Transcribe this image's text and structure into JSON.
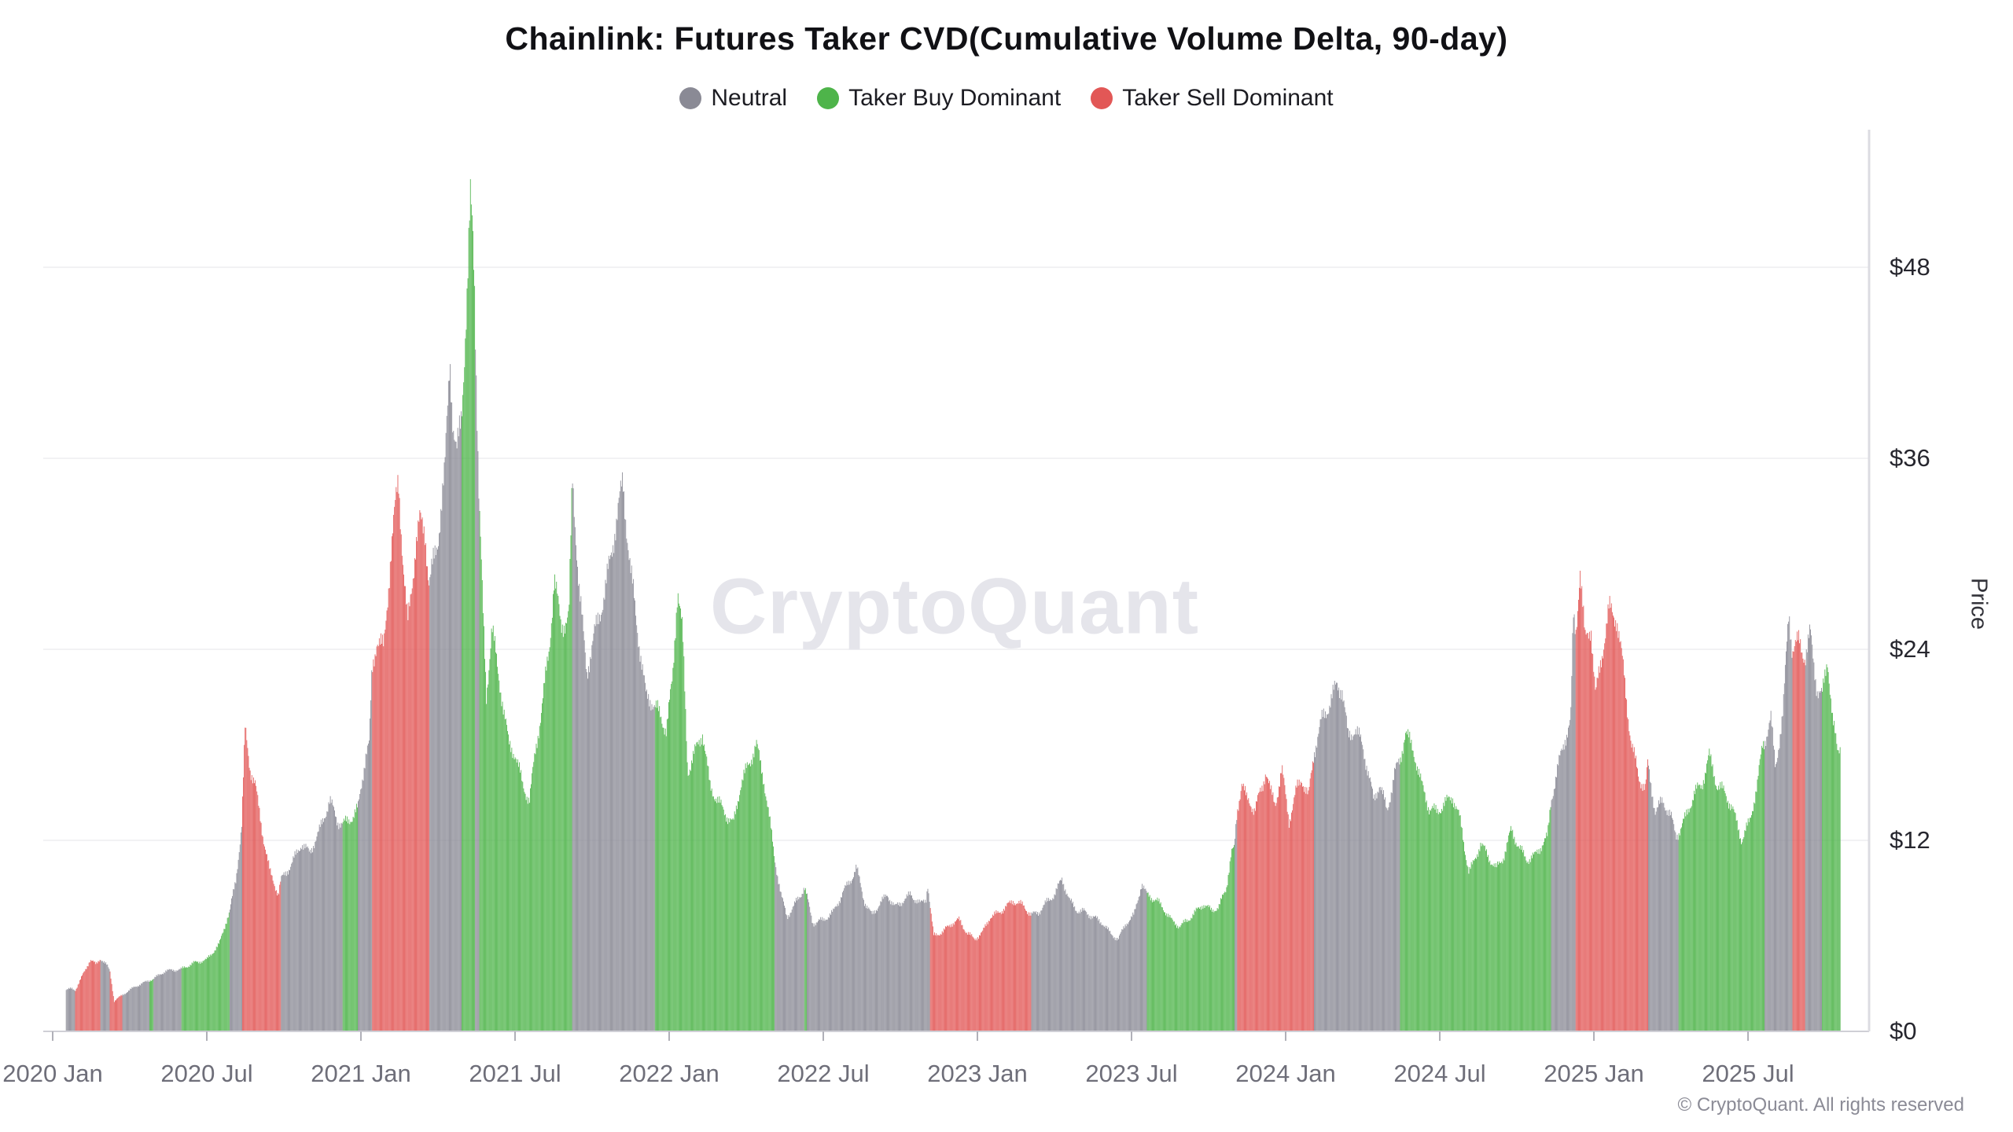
{
  "header": {
    "title": "Chainlink: Futures Taker CVD(Cumulative Volume Delta, 90-day)"
  },
  "legend": {
    "items": [
      {
        "label": "Neutral",
        "key": "N",
        "color": "#8a8a95"
      },
      {
        "label": "Taker Buy Dominant",
        "key": "B",
        "color": "#4eb44a"
      },
      {
        "label": "Taker Sell Dominant",
        "key": "S",
        "color": "#e25756"
      }
    ]
  },
  "watermark": {
    "text": "CryptoQuant"
  },
  "footer": {
    "copyright": "© CryptoQuant. All rights reserved"
  },
  "axes": {
    "y_axis_title": "Price",
    "y_tick_labels": [
      "$0",
      "$12",
      "$24",
      "$36",
      "$48"
    ],
    "grid_color": "#ededf1",
    "baseline_color": "#cfcfd6",
    "right_axis_color": "#dcdce2",
    "tick_color": "#b0b0b8"
  },
  "chart_data": {
    "type": "bar",
    "title": "Chainlink: Futures Taker CVD(Cumulative Volume Delta, 90-day)",
    "xlabel": "",
    "ylabel": "Price",
    "y_unit": "USD",
    "ylim": [
      0,
      52.5
    ],
    "y_ticks": [
      0,
      12,
      24,
      36,
      48
    ],
    "grid": "horizontal",
    "legend_position": "top",
    "bar_resolution": "daily",
    "date_range": [
      "2020-01-17",
      "2025-10-19"
    ],
    "x_ticks": [
      {
        "label": "2020 Jan",
        "date": "2020-01-01"
      },
      {
        "label": "2020 Jul",
        "date": "2020-07-01"
      },
      {
        "label": "2021 Jan",
        "date": "2021-01-01"
      },
      {
        "label": "2021 Jul",
        "date": "2021-07-01"
      },
      {
        "label": "2022 Jan",
        "date": "2022-01-01"
      },
      {
        "label": "2022 Jul",
        "date": "2022-07-01"
      },
      {
        "label": "2023 Jan",
        "date": "2023-01-01"
      },
      {
        "label": "2023 Jul",
        "date": "2023-07-01"
      },
      {
        "label": "2024 Jan",
        "date": "2024-01-01"
      },
      {
        "label": "2024 Jul",
        "date": "2024-07-01"
      },
      {
        "label": "2025 Jan",
        "date": "2025-01-01"
      },
      {
        "label": "2025 Jul",
        "date": "2025-07-01"
      }
    ],
    "categories_legend": {
      "N": "Neutral",
      "B": "Taker Buy Dominant",
      "S": "Taker Sell Dominant"
    },
    "colors": {
      "N": "#8a8a95",
      "B": "#4eb44a",
      "S": "#e25756"
    },
    "points": [
      [
        "2020-01-17",
        2.6,
        "N"
      ],
      [
        "2020-01-24",
        2.7,
        "N"
      ],
      [
        "2020-01-28",
        2.6,
        "S"
      ],
      [
        "2020-02-04",
        3.3,
        "S"
      ],
      [
        "2020-02-15",
        4.5,
        "S"
      ],
      [
        "2020-02-22",
        4.2,
        "S"
      ],
      [
        "2020-02-27",
        4.6,
        "N"
      ],
      [
        "2020-03-05",
        4.1,
        "N"
      ],
      [
        "2020-03-08",
        3.8,
        "S"
      ],
      [
        "2020-03-13",
        1.9,
        "S"
      ],
      [
        "2020-03-18",
        2.1,
        "S"
      ],
      [
        "2020-03-23",
        2.3,
        "N"
      ],
      [
        "2020-04-07",
        2.8,
        "N"
      ],
      [
        "2020-04-24",
        3.2,
        "B"
      ],
      [
        "2020-04-29",
        3.3,
        "N"
      ],
      [
        "2020-05-13",
        3.8,
        "N"
      ],
      [
        "2020-06-01",
        3.9,
        "B"
      ],
      [
        "2020-06-16",
        4.3,
        "B"
      ],
      [
        "2020-07-01",
        4.5,
        "B"
      ],
      [
        "2020-07-16",
        5.5,
        "B"
      ],
      [
        "2020-07-25",
        7.1,
        "B"
      ],
      [
        "2020-07-28",
        7.5,
        "N"
      ],
      [
        "2020-08-05",
        9.5,
        "N"
      ],
      [
        "2020-08-09",
        11.5,
        "N"
      ],
      [
        "2020-08-12",
        13.0,
        "S"
      ],
      [
        "2020-08-16",
        19.0,
        "S"
      ],
      [
        "2020-08-22",
        16.5,
        "S"
      ],
      [
        "2020-08-28",
        15.5,
        "S"
      ],
      [
        "2020-09-06",
        12.5,
        "S"
      ],
      [
        "2020-09-15",
        10.0,
        "S"
      ],
      [
        "2020-09-25",
        8.6,
        "S"
      ],
      [
        "2020-09-28",
        9.5,
        "N"
      ],
      [
        "2020-10-10",
        10.5,
        "N"
      ],
      [
        "2020-10-22",
        11.8,
        "N"
      ],
      [
        "2020-11-01",
        11.2,
        "N"
      ],
      [
        "2020-11-12",
        12.5,
        "N"
      ],
      [
        "2020-11-25",
        14.5,
        "N"
      ],
      [
        "2020-12-04",
        13.2,
        "N"
      ],
      [
        "2020-12-10",
        13.0,
        "B"
      ],
      [
        "2020-12-22",
        13.5,
        "B"
      ],
      [
        "2020-12-28",
        14.0,
        "N"
      ],
      [
        "2021-01-07",
        17.5,
        "N"
      ],
      [
        "2021-01-11",
        18.0,
        "N"
      ],
      [
        "2021-01-14",
        22.5,
        "S"
      ],
      [
        "2021-01-20",
        24.7,
        "S"
      ],
      [
        "2021-01-28",
        24.0,
        "S"
      ],
      [
        "2021-02-06",
        30.0,
        "S"
      ],
      [
        "2021-02-15",
        34.8,
        "S"
      ],
      [
        "2021-02-21",
        29.0,
        "S"
      ],
      [
        "2021-02-26",
        25.5,
        "S"
      ],
      [
        "2021-03-05",
        30.5,
        "S"
      ],
      [
        "2021-03-10",
        32.0,
        "S"
      ],
      [
        "2021-03-16",
        31.5,
        "S"
      ],
      [
        "2021-03-21",
        28.0,
        "N"
      ],
      [
        "2021-04-01",
        31.0,
        "N"
      ],
      [
        "2021-04-09",
        35.0,
        "N"
      ],
      [
        "2021-04-15",
        42.6,
        "N"
      ],
      [
        "2021-04-19",
        38.0,
        "N"
      ],
      [
        "2021-04-23",
        36.0,
        "N"
      ],
      [
        "2021-04-29",
        39.0,
        "B"
      ],
      [
        "2021-05-05",
        46.0,
        "B"
      ],
      [
        "2021-05-09",
        52.0,
        "B"
      ],
      [
        "2021-05-12",
        50.0,
        "B"
      ],
      [
        "2021-05-14",
        47.0,
        "N"
      ],
      [
        "2021-05-16",
        41.5,
        "N"
      ],
      [
        "2021-05-19",
        34.0,
        "B"
      ],
      [
        "2021-05-24",
        26.0,
        "B"
      ],
      [
        "2021-05-28",
        21.0,
        "B"
      ],
      [
        "2021-06-04",
        25.5,
        "B"
      ],
      [
        "2021-06-10",
        23.0,
        "B"
      ],
      [
        "2021-06-16",
        21.0,
        "B"
      ],
      [
        "2021-06-24",
        18.0,
        "B"
      ],
      [
        "2021-07-01",
        17.5,
        "B"
      ],
      [
        "2021-07-10",
        15.5,
        "B"
      ],
      [
        "2021-07-18",
        14.5,
        "B"
      ],
      [
        "2021-07-25",
        17.5,
        "B"
      ],
      [
        "2021-08-04",
        21.0,
        "B"
      ],
      [
        "2021-08-11",
        24.0,
        "B"
      ],
      [
        "2021-08-17",
        28.5,
        "B"
      ],
      [
        "2021-08-25",
        25.5,
        "B"
      ],
      [
        "2021-09-04",
        26.0,
        "B"
      ],
      [
        "2021-09-08",
        34.8,
        "N"
      ],
      [
        "2021-09-16",
        28.0,
        "N"
      ],
      [
        "2021-09-25",
        22.5,
        "N"
      ],
      [
        "2021-10-04",
        25.0,
        "N"
      ],
      [
        "2021-10-16",
        27.5,
        "N"
      ],
      [
        "2021-10-28",
        31.5,
        "N"
      ],
      [
        "2021-11-07",
        34.5,
        "N"
      ],
      [
        "2021-11-16",
        29.0,
        "N"
      ],
      [
        "2021-11-25",
        25.0,
        "N"
      ],
      [
        "2021-12-04",
        21.0,
        "N"
      ],
      [
        "2021-12-11",
        20.8,
        "N"
      ],
      [
        "2021-12-14",
        20.5,
        "B"
      ],
      [
        "2021-12-19",
        20.0,
        "B"
      ],
      [
        "2021-12-28",
        19.0,
        "B"
      ],
      [
        "2022-01-05",
        22.0,
        "B"
      ],
      [
        "2022-01-11",
        28.0,
        "B"
      ],
      [
        "2022-01-17",
        25.0,
        "B"
      ],
      [
        "2022-01-23",
        16.3,
        "B"
      ],
      [
        "2022-02-01",
        17.5,
        "B"
      ],
      [
        "2022-02-10",
        18.8,
        "B"
      ],
      [
        "2022-02-19",
        15.4,
        "B"
      ],
      [
        "2022-02-28",
        14.5,
        "B"
      ],
      [
        "2022-03-09",
        13.5,
        "B"
      ],
      [
        "2022-03-16",
        13.0,
        "B"
      ],
      [
        "2022-03-25",
        15.5,
        "B"
      ],
      [
        "2022-04-04",
        16.8,
        "B"
      ],
      [
        "2022-04-13",
        18.0,
        "B"
      ],
      [
        "2022-04-22",
        15.8,
        "B"
      ],
      [
        "2022-05-01",
        12.2,
        "B"
      ],
      [
        "2022-05-04",
        11.0,
        "N"
      ],
      [
        "2022-05-12",
        8.5,
        "N"
      ],
      [
        "2022-05-19",
        7.2,
        "N"
      ],
      [
        "2022-06-05",
        8.6,
        "N"
      ],
      [
        "2022-06-09",
        9.1,
        "B"
      ],
      [
        "2022-06-12",
        8.5,
        "N"
      ],
      [
        "2022-06-19",
        6.8,
        "N"
      ],
      [
        "2022-07-01",
        7.0,
        "N"
      ],
      [
        "2022-07-13",
        7.5,
        "N"
      ],
      [
        "2022-07-25",
        8.8,
        "N"
      ],
      [
        "2022-08-04",
        9.6,
        "N"
      ],
      [
        "2022-08-10",
        10.3,
        "N"
      ],
      [
        "2022-08-19",
        8.2,
        "N"
      ],
      [
        "2022-08-28",
        7.3,
        "N"
      ],
      [
        "2022-09-07",
        8.0,
        "N"
      ],
      [
        "2022-09-16",
        8.6,
        "N"
      ],
      [
        "2022-09-25",
        7.8,
        "N"
      ],
      [
        "2022-10-04",
        8.2,
        "N"
      ],
      [
        "2022-10-13",
        8.6,
        "N"
      ],
      [
        "2022-10-25",
        8.0,
        "N"
      ],
      [
        "2022-11-01",
        8.3,
        "N"
      ],
      [
        "2022-11-03",
        9.3,
        "N"
      ],
      [
        "2022-11-06",
        7.8,
        "S"
      ],
      [
        "2022-11-10",
        6.0,
        "S"
      ],
      [
        "2022-11-22",
        6.3,
        "S"
      ],
      [
        "2022-12-01",
        6.8,
        "S"
      ],
      [
        "2022-12-10",
        7.0,
        "S"
      ],
      [
        "2022-12-19",
        6.2,
        "S"
      ],
      [
        "2022-12-28",
        5.8,
        "S"
      ],
      [
        "2023-01-07",
        6.2,
        "S"
      ],
      [
        "2023-01-16",
        7.2,
        "S"
      ],
      [
        "2023-01-25",
        7.4,
        "S"
      ],
      [
        "2023-02-04",
        7.8,
        "S"
      ],
      [
        "2023-02-13",
        8.2,
        "S"
      ],
      [
        "2023-02-25",
        7.9,
        "S"
      ],
      [
        "2023-03-04",
        7.3,
        "N"
      ],
      [
        "2023-03-13",
        7.5,
        "N"
      ],
      [
        "2023-03-22",
        8.1,
        "N"
      ],
      [
        "2023-04-01",
        8.6,
        "N"
      ],
      [
        "2023-04-10",
        9.6,
        "N"
      ],
      [
        "2023-04-19",
        8.2,
        "N"
      ],
      [
        "2023-04-28",
        7.6,
        "N"
      ],
      [
        "2023-05-07",
        7.5,
        "N"
      ],
      [
        "2023-05-16",
        7.2,
        "N"
      ],
      [
        "2023-05-28",
        6.8,
        "N"
      ],
      [
        "2023-06-07",
        6.1,
        "N"
      ],
      [
        "2023-06-16",
        5.8,
        "N"
      ],
      [
        "2023-06-25",
        6.8,
        "N"
      ],
      [
        "2023-07-04",
        7.3,
        "N"
      ],
      [
        "2023-07-13",
        9.3,
        "N"
      ],
      [
        "2023-07-19",
        8.6,
        "B"
      ],
      [
        "2023-08-01",
        8.2,
        "B"
      ],
      [
        "2023-08-10",
        7.6,
        "B"
      ],
      [
        "2023-08-19",
        6.9,
        "B"
      ],
      [
        "2023-08-28",
        6.6,
        "B"
      ],
      [
        "2023-09-07",
        7.0,
        "B"
      ],
      [
        "2023-09-25",
        8.0,
        "B"
      ],
      [
        "2023-10-04",
        7.6,
        "B"
      ],
      [
        "2023-10-13",
        7.8,
        "B"
      ],
      [
        "2023-10-22",
        9.0,
        "B"
      ],
      [
        "2023-10-28",
        11.3,
        "B"
      ],
      [
        "2023-11-01",
        11.4,
        "N"
      ],
      [
        "2023-11-04",
        13.5,
        "S"
      ],
      [
        "2023-11-10",
        15.8,
        "S"
      ],
      [
        "2023-11-16",
        14.5,
        "S"
      ],
      [
        "2023-11-25",
        14.0,
        "S"
      ],
      [
        "2023-12-04",
        15.3,
        "S"
      ],
      [
        "2023-12-08",
        16.5,
        "S"
      ],
      [
        "2023-12-14",
        15.0,
        "S"
      ],
      [
        "2023-12-19",
        14.2,
        "S"
      ],
      [
        "2023-12-27",
        16.5,
        "S"
      ],
      [
        "2024-01-05",
        13.2,
        "S"
      ],
      [
        "2024-01-14",
        15.2,
        "S"
      ],
      [
        "2024-01-20",
        15.9,
        "S"
      ],
      [
        "2024-01-28",
        14.7,
        "S"
      ],
      [
        "2024-02-04",
        17.5,
        "N"
      ],
      [
        "2024-02-13",
        19.5,
        "N"
      ],
      [
        "2024-02-22",
        20.5,
        "N"
      ],
      [
        "2024-03-01",
        21.8,
        "N"
      ],
      [
        "2024-03-07",
        21.5,
        "N"
      ],
      [
        "2024-03-14",
        18.5,
        "N"
      ],
      [
        "2024-03-22",
        19.0,
        "N"
      ],
      [
        "2024-04-01",
        18.0,
        "N"
      ],
      [
        "2024-04-14",
        14.5,
        "N"
      ],
      [
        "2024-04-21",
        15.6,
        "N"
      ],
      [
        "2024-04-30",
        13.8,
        "N"
      ],
      [
        "2024-05-08",
        16.2,
        "N"
      ],
      [
        "2024-05-15",
        17.0,
        "B"
      ],
      [
        "2024-05-21",
        18.9,
        "B"
      ],
      [
        "2024-06-01",
        17.5,
        "B"
      ],
      [
        "2024-06-10",
        15.5,
        "B"
      ],
      [
        "2024-06-19",
        14.0,
        "B"
      ],
      [
        "2024-06-28",
        13.8,
        "B"
      ],
      [
        "2024-07-07",
        14.3,
        "B"
      ],
      [
        "2024-07-16",
        14.8,
        "B"
      ],
      [
        "2024-07-25",
        13.3,
        "B"
      ],
      [
        "2024-08-05",
        10.0,
        "B"
      ],
      [
        "2024-08-10",
        10.5,
        "B"
      ],
      [
        "2024-08-19",
        11.8,
        "B"
      ],
      [
        "2024-08-28",
        11.0,
        "B"
      ],
      [
        "2024-09-07",
        10.2,
        "B"
      ],
      [
        "2024-09-16",
        11.0,
        "B"
      ],
      [
        "2024-09-25",
        12.7,
        "B"
      ],
      [
        "2024-10-04",
        11.5,
        "B"
      ],
      [
        "2024-10-13",
        10.8,
        "B"
      ],
      [
        "2024-10-22",
        11.0,
        "B"
      ],
      [
        "2024-11-01",
        11.8,
        "B"
      ],
      [
        "2024-11-07",
        12.2,
        "B"
      ],
      [
        "2024-11-11",
        14.5,
        "N"
      ],
      [
        "2024-11-19",
        16.5,
        "N"
      ],
      [
        "2024-11-28",
        18.5,
        "N"
      ],
      [
        "2024-12-04",
        19.5,
        "N"
      ],
      [
        "2024-12-07",
        26.0,
        "N"
      ],
      [
        "2024-12-10",
        25.0,
        "S"
      ],
      [
        "2024-12-15",
        29.2,
        "S"
      ],
      [
        "2024-12-21",
        24.5,
        "S"
      ],
      [
        "2024-12-28",
        25.5,
        "S"
      ],
      [
        "2025-01-03",
        21.0,
        "S"
      ],
      [
        "2025-01-10",
        23.5,
        "S"
      ],
      [
        "2025-01-19",
        26.5,
        "S"
      ],
      [
        "2025-01-28",
        26.0,
        "S"
      ],
      [
        "2025-02-06",
        22.5,
        "S"
      ],
      [
        "2025-02-15",
        18.0,
        "S"
      ],
      [
        "2025-02-24",
        16.0,
        "S"
      ],
      [
        "2025-03-01",
        15.2,
        "S"
      ],
      [
        "2025-03-04",
        16.8,
        "N"
      ],
      [
        "2025-03-13",
        13.8,
        "N"
      ],
      [
        "2025-03-22",
        14.5,
        "N"
      ],
      [
        "2025-04-01",
        13.5,
        "N"
      ],
      [
        "2025-04-07",
        12.3,
        "N"
      ],
      [
        "2025-04-10",
        12.5,
        "B"
      ],
      [
        "2025-04-19",
        13.5,
        "B"
      ],
      [
        "2025-04-28",
        14.9,
        "B"
      ],
      [
        "2025-05-07",
        15.5,
        "B"
      ],
      [
        "2025-05-16",
        17.3,
        "B"
      ],
      [
        "2025-05-25",
        15.5,
        "B"
      ],
      [
        "2025-06-04",
        15.0,
        "B"
      ],
      [
        "2025-06-13",
        14.0,
        "B"
      ],
      [
        "2025-06-24",
        12.0,
        "B"
      ],
      [
        "2025-07-03",
        13.2,
        "B"
      ],
      [
        "2025-07-12",
        15.5,
        "B"
      ],
      [
        "2025-07-18",
        17.9,
        "B"
      ],
      [
        "2025-07-21",
        18.3,
        "N"
      ],
      [
        "2025-07-28",
        19.7,
        "N"
      ],
      [
        "2025-08-03",
        16.5,
        "N"
      ],
      [
        "2025-08-12",
        20.0,
        "N"
      ],
      [
        "2025-08-19",
        26.5,
        "N"
      ],
      [
        "2025-08-23",
        24.0,
        "S"
      ],
      [
        "2025-09-01",
        24.5,
        "S"
      ],
      [
        "2025-09-08",
        23.5,
        "N"
      ],
      [
        "2025-09-14",
        25.0,
        "N"
      ],
      [
        "2025-09-22",
        21.5,
        "N"
      ],
      [
        "2025-09-28",
        21.0,
        "B"
      ],
      [
        "2025-10-04",
        23.5,
        "B"
      ],
      [
        "2025-10-10",
        19.5,
        "B"
      ],
      [
        "2025-10-16",
        17.5,
        "B"
      ],
      [
        "2025-10-19",
        18.0,
        "B"
      ]
    ]
  }
}
